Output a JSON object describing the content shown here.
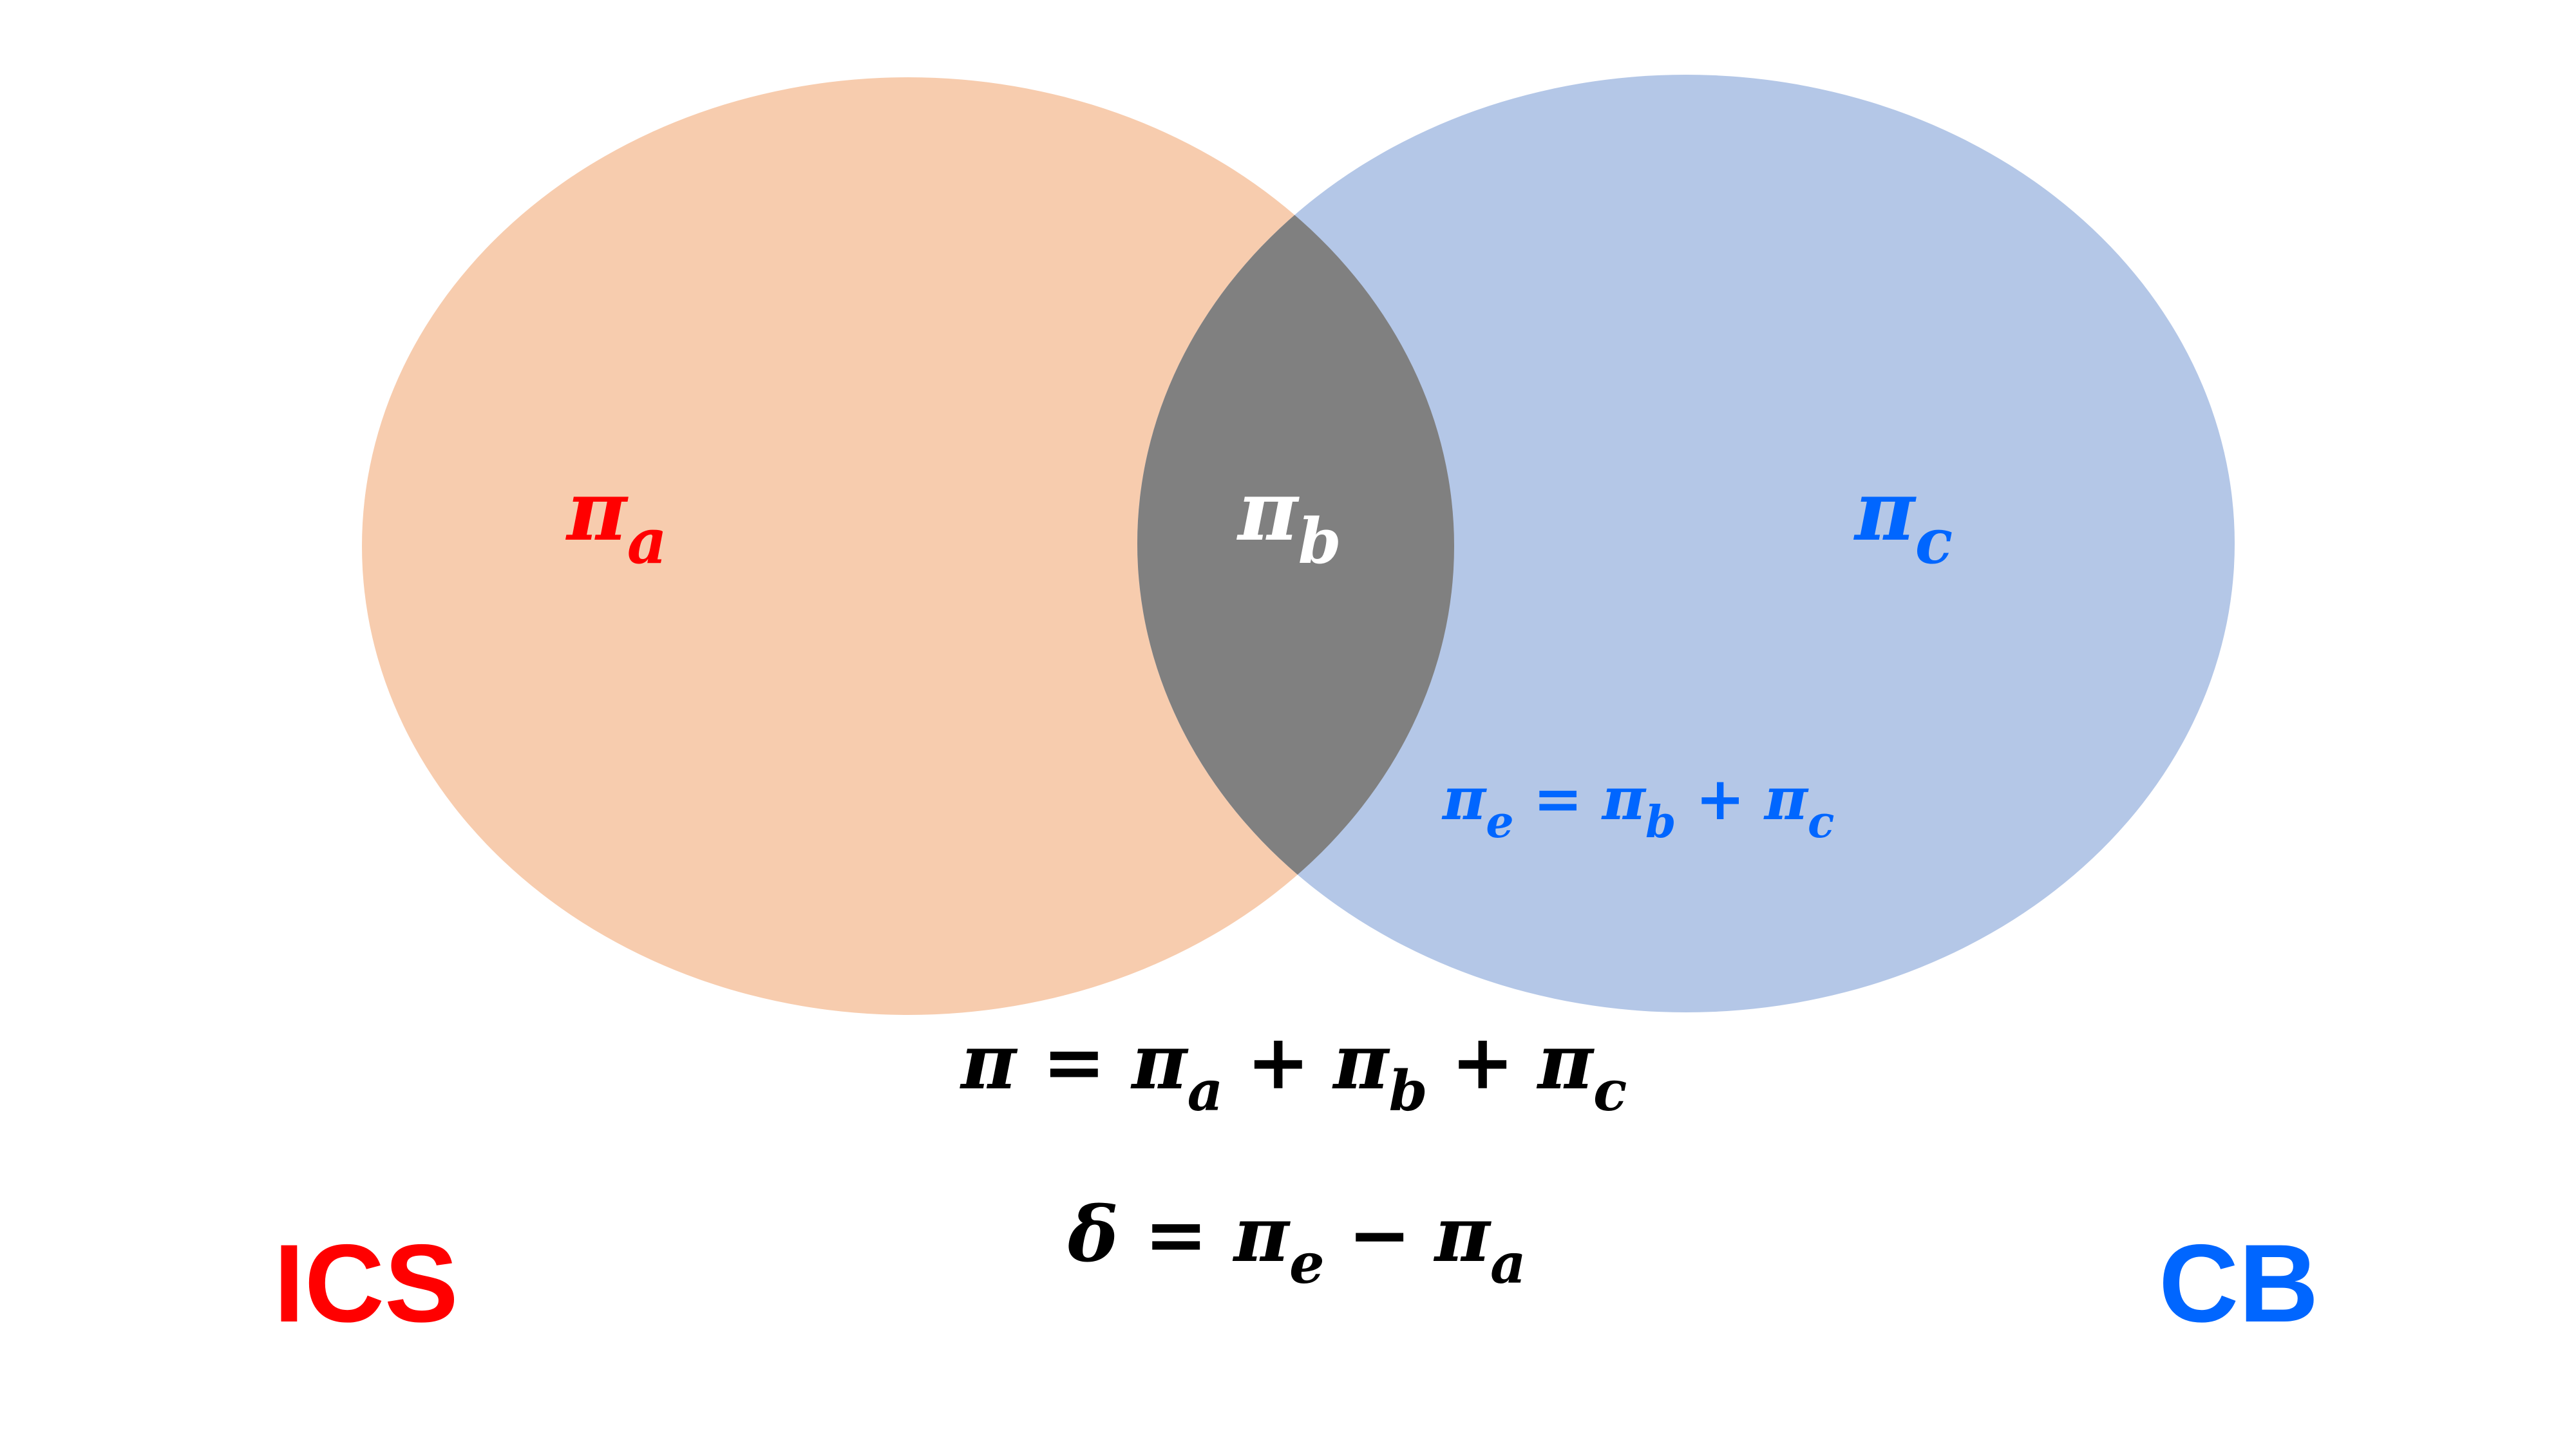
{
  "sets": {
    "left": {
      "name": "ICS",
      "region_symbol": "π",
      "region_subscript": "a"
    },
    "intersection": {
      "region_symbol": "π",
      "region_subscript": "b"
    },
    "right": {
      "name": "CB",
      "region_symbol": "π",
      "region_subscript": "c"
    }
  },
  "annotations": {
    "pi_e": {
      "lhs_symbol": "π",
      "lhs_subscript": "e",
      "eq": "=",
      "t1_symbol": "π",
      "t1_subscript": "b",
      "plus": "+",
      "t2_symbol": "π",
      "t2_subscript": "c"
    }
  },
  "equations": {
    "total": {
      "lhs": "π",
      "eq": "=",
      "t1_symbol": "π",
      "t1_subscript": "a",
      "plus1": "+",
      "t2_symbol": "π",
      "t2_subscript": "b",
      "plus2": "+",
      "t3_symbol": "π",
      "t3_subscript": "c"
    },
    "delta": {
      "lhs": "δ",
      "eq": "=",
      "t1_symbol": "π",
      "t1_subscript": "e",
      "minus": "−",
      "t2_symbol": "π",
      "t2_subscript": "a"
    }
  },
  "colors": {
    "left_fill": "#F7CCAE",
    "right_fill": "#B4C7E7",
    "intersection_fill": "#808080",
    "red_text": "#FF0000",
    "blue_text": "#0066FF",
    "white_text": "#FFFFFF",
    "black_text": "#000000"
  }
}
